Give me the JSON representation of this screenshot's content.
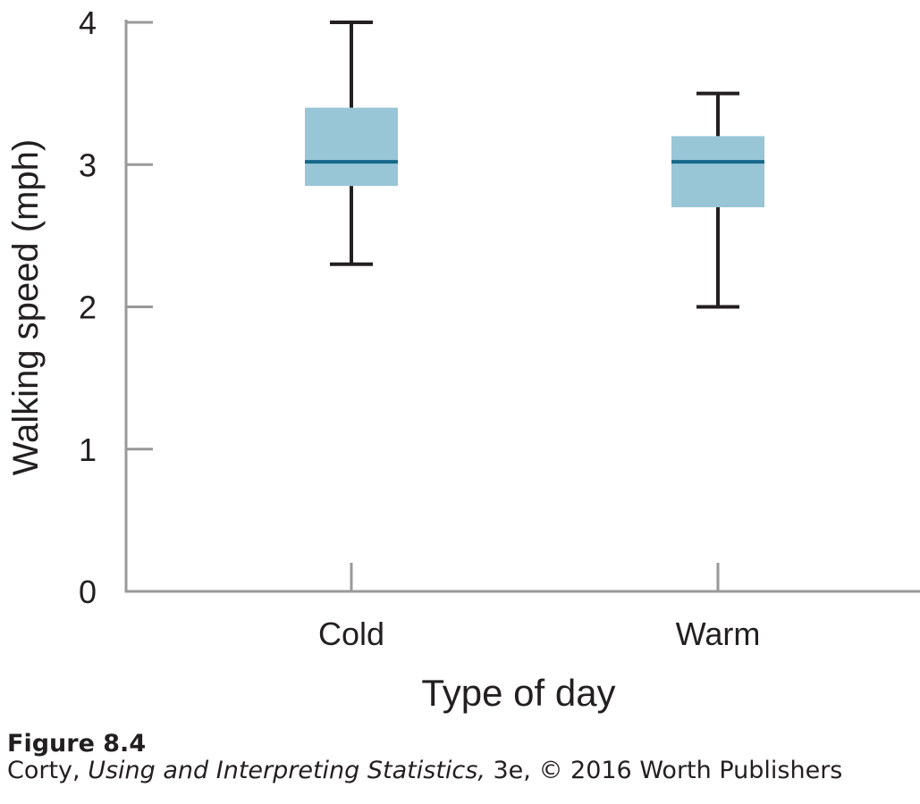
{
  "chart_data": {
    "type": "box",
    "categories": [
      "Cold",
      "Warm"
    ],
    "boxes": [
      {
        "category": "Cold",
        "whisker_low": 2.3,
        "q1": 2.85,
        "median": 3.02,
        "q3": 3.4,
        "whisker_high": 4.0
      },
      {
        "category": "Warm",
        "whisker_low": 2.0,
        "q1": 2.7,
        "median": 3.02,
        "q3": 3.2,
        "whisker_high": 3.5
      }
    ],
    "y_ticks": [
      "0",
      "1",
      "2",
      "3",
      "4"
    ],
    "ylim": [
      0,
      4
    ],
    "xlabel": "Type of day",
    "ylabel": "Walking speed (mph)",
    "grid": false,
    "colors": {
      "box_fill": "#98c6d7",
      "median_line": "#17688a",
      "whisker": "#231f20",
      "axis": "#999999",
      "text": "#231f20"
    }
  },
  "caption": {
    "figure_label": "Figure 8.4",
    "credit_prefix": "Corty, ",
    "credit_title": "Using and Interpreting Statistics,",
    "credit_suffix": " 3e, © 2016 Worth Publishers"
  }
}
